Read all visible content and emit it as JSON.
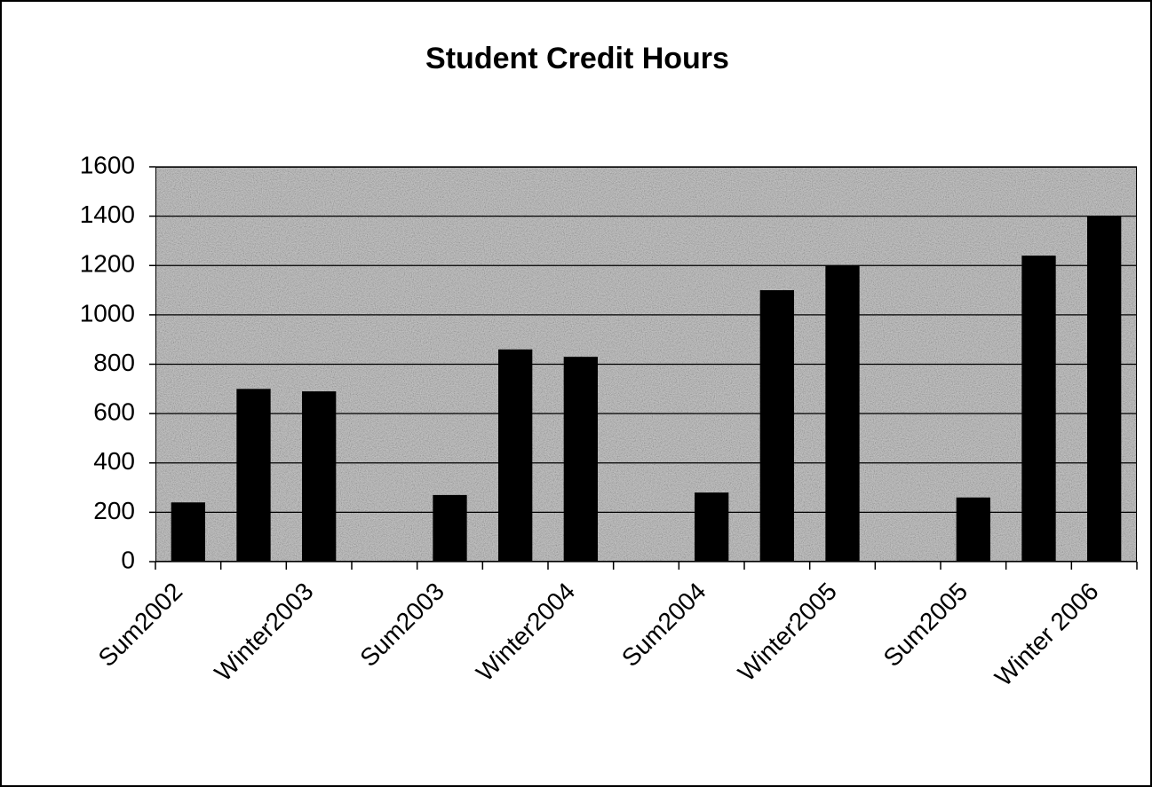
{
  "chart_data": {
    "type": "bar",
    "title": "Student Credit Hours",
    "categories": [
      "Sum2002",
      null,
      "Winter2003",
      null,
      "Sum2003",
      null,
      "Winter2004",
      null,
      "Sum2004",
      null,
      "Winter2005",
      null,
      "Sum2005",
      null,
      "Winter 2006"
    ],
    "values": [
      240,
      700,
      690,
      null,
      270,
      860,
      830,
      null,
      280,
      1100,
      1200,
      null,
      260,
      1240,
      1400
    ],
    "color": "#000000",
    "ylim": [
      0,
      1600
    ],
    "yticks": [
      0,
      200,
      400,
      600,
      800,
      1000,
      1200,
      1400,
      1600
    ],
    "grid": true
  }
}
